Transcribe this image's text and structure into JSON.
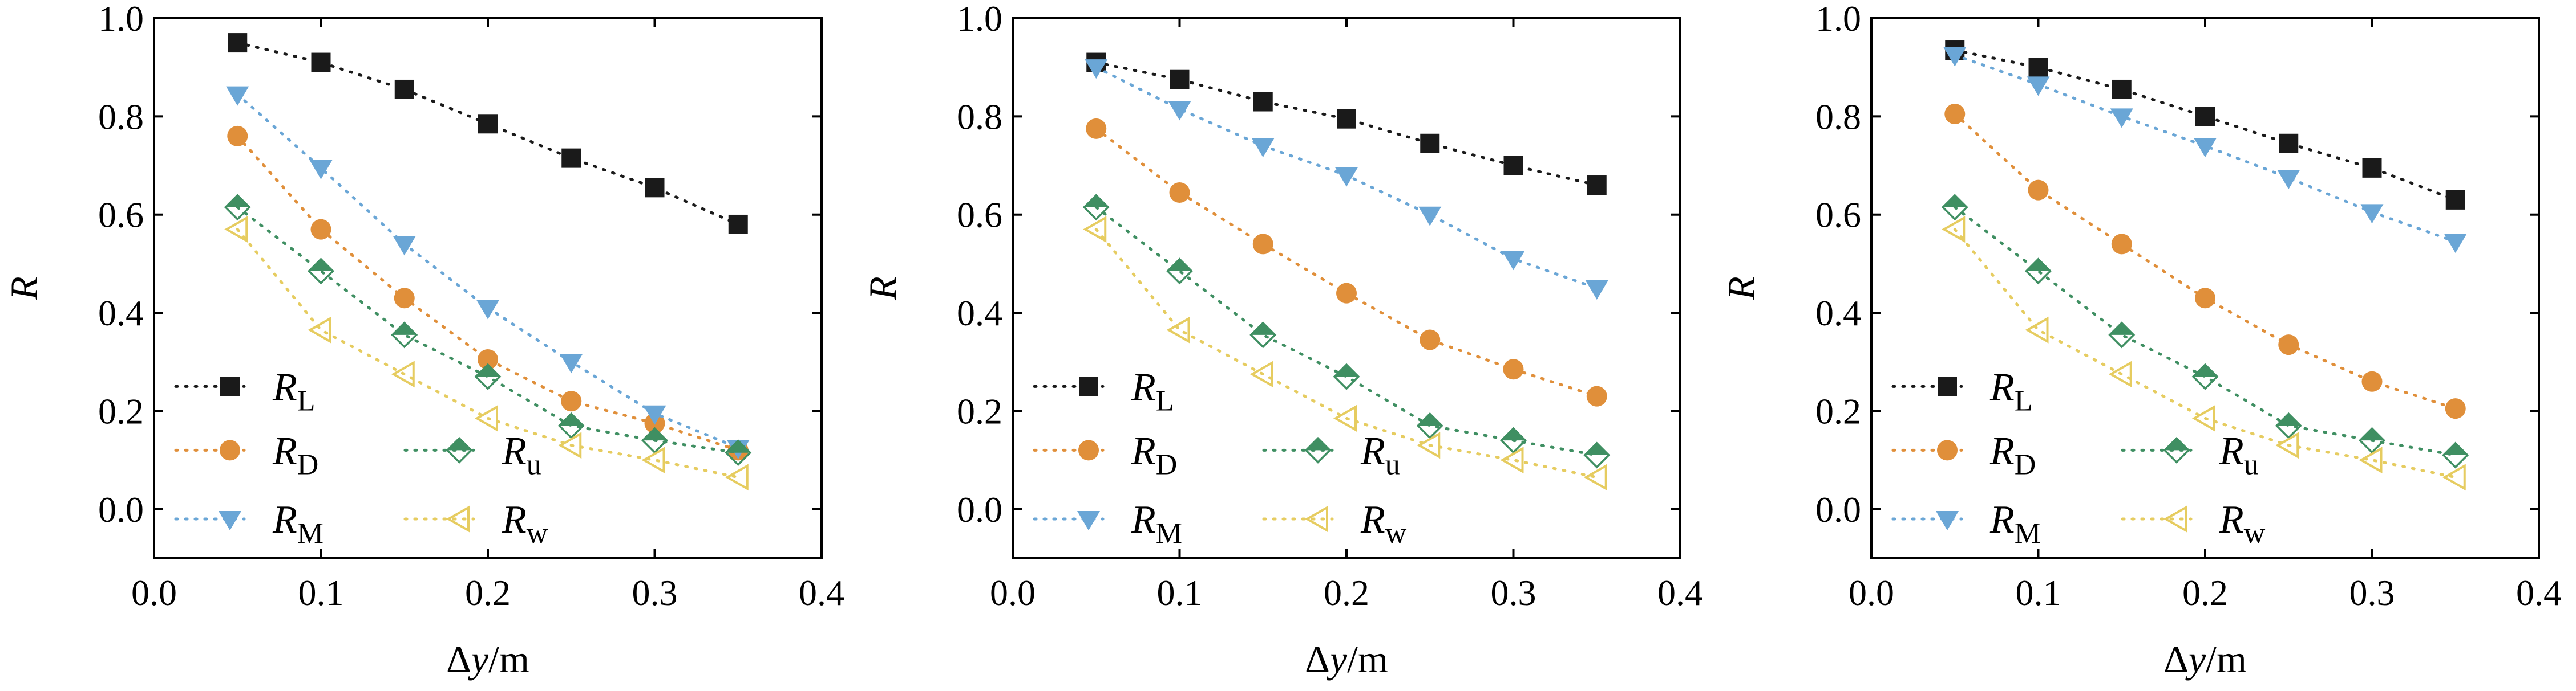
{
  "chart_data": [
    {
      "type": "scatter",
      "xlabel_parts": [
        "Δ",
        "y",
        "/m"
      ],
      "ylabel": "R",
      "xlim": [
        0.0,
        0.4
      ],
      "ylim": [
        -0.1,
        1.0
      ],
      "xticks": [
        "0.0",
        "0.1",
        "0.2",
        "0.3",
        "0.4"
      ],
      "yticks": [
        "0.0",
        "0.2",
        "0.4",
        "0.6",
        "0.8",
        "1.0"
      ],
      "grid": false,
      "legend_position": "bottom-left",
      "series": [
        {
          "key": "L",
          "base": "R",
          "sub": "L",
          "color": "#1a1a1a",
          "marker": "square",
          "x": [
            0.05,
            0.1,
            0.15,
            0.2,
            0.25,
            0.3,
            0.35
          ],
          "y": [
            0.95,
            0.91,
            0.855,
            0.785,
            0.715,
            0.655,
            0.58
          ]
        },
        {
          "key": "D",
          "base": "R",
          "sub": "D",
          "color": "#e08f3a",
          "marker": "circle",
          "x": [
            0.05,
            0.1,
            0.15,
            0.2,
            0.25,
            0.3,
            0.35
          ],
          "y": [
            0.76,
            0.57,
            0.43,
            0.305,
            0.22,
            0.175,
            0.12
          ]
        },
        {
          "key": "M",
          "base": "R",
          "sub": "M",
          "color": "#6aa6d6",
          "marker": "triangle-down",
          "x": [
            0.05,
            0.1,
            0.15,
            0.2,
            0.25,
            0.3,
            0.35
          ],
          "y": [
            0.845,
            0.695,
            0.54,
            0.41,
            0.3,
            0.195,
            0.125
          ]
        },
        {
          "key": "u",
          "base": "R",
          "sub": "u",
          "color": "#3f8f62",
          "marker": "diamond-half",
          "x": [
            0.05,
            0.1,
            0.15,
            0.2,
            0.25,
            0.3,
            0.35
          ],
          "y": [
            0.615,
            0.485,
            0.355,
            0.27,
            0.17,
            0.14,
            0.115
          ]
        },
        {
          "key": "w",
          "base": "R",
          "sub": "w",
          "color": "#e6cc60",
          "marker": "triangle-left",
          "x": [
            0.05,
            0.1,
            0.15,
            0.2,
            0.25,
            0.3,
            0.35
          ],
          "y": [
            0.57,
            0.365,
            0.275,
            0.185,
            0.13,
            0.1,
            0.065
          ]
        }
      ]
    },
    {
      "type": "scatter",
      "xlabel_parts": [
        "Δ",
        "y",
        "/m"
      ],
      "ylabel": "R",
      "xlim": [
        0.0,
        0.4
      ],
      "ylim": [
        -0.1,
        1.0
      ],
      "xticks": [
        "0.0",
        "0.1",
        "0.2",
        "0.3",
        "0.4"
      ],
      "yticks": [
        "0.0",
        "0.2",
        "0.4",
        "0.6",
        "0.8",
        "1.0"
      ],
      "grid": false,
      "legend_position": "bottom-left",
      "series": [
        {
          "key": "L",
          "base": "R",
          "sub": "L",
          "color": "#1a1a1a",
          "marker": "square",
          "x": [
            0.05,
            0.1,
            0.15,
            0.2,
            0.25,
            0.3,
            0.35
          ],
          "y": [
            0.91,
            0.875,
            0.83,
            0.795,
            0.745,
            0.7,
            0.66
          ]
        },
        {
          "key": "D",
          "base": "R",
          "sub": "D",
          "color": "#e08f3a",
          "marker": "circle",
          "x": [
            0.05,
            0.1,
            0.15,
            0.2,
            0.25,
            0.3,
            0.35
          ],
          "y": [
            0.775,
            0.645,
            0.54,
            0.44,
            0.345,
            0.285,
            0.23
          ]
        },
        {
          "key": "M",
          "base": "R",
          "sub": "M",
          "color": "#6aa6d6",
          "marker": "triangle-down",
          "x": [
            0.05,
            0.1,
            0.15,
            0.2,
            0.25,
            0.3,
            0.35
          ],
          "y": [
            0.9,
            0.815,
            0.74,
            0.68,
            0.6,
            0.51,
            0.45
          ]
        },
        {
          "key": "u",
          "base": "R",
          "sub": "u",
          "color": "#3f8f62",
          "marker": "diamond-half",
          "x": [
            0.05,
            0.1,
            0.15,
            0.2,
            0.25,
            0.3,
            0.35
          ],
          "y": [
            0.615,
            0.485,
            0.355,
            0.27,
            0.17,
            0.14,
            0.11
          ]
        },
        {
          "key": "w",
          "base": "R",
          "sub": "w",
          "color": "#e6cc60",
          "marker": "triangle-left",
          "x": [
            0.05,
            0.1,
            0.15,
            0.2,
            0.25,
            0.3,
            0.35
          ],
          "y": [
            0.57,
            0.365,
            0.275,
            0.185,
            0.13,
            0.1,
            0.065
          ]
        }
      ]
    },
    {
      "type": "scatter",
      "xlabel_parts": [
        "Δ",
        "y",
        "/m"
      ],
      "ylabel": "R",
      "xlim": [
        0.0,
        0.4
      ],
      "ylim": [
        -0.1,
        1.0
      ],
      "xticks": [
        "0.0",
        "0.1",
        "0.2",
        "0.3",
        "0.4"
      ],
      "yticks": [
        "0.0",
        "0.2",
        "0.4",
        "0.6",
        "0.8",
        "1.0"
      ],
      "grid": false,
      "legend_position": "bottom-left",
      "series": [
        {
          "key": "L",
          "base": "R",
          "sub": "L",
          "color": "#1a1a1a",
          "marker": "square",
          "x": [
            0.05,
            0.1,
            0.15,
            0.2,
            0.25,
            0.3,
            0.35
          ],
          "y": [
            0.935,
            0.9,
            0.855,
            0.8,
            0.745,
            0.695,
            0.63
          ]
        },
        {
          "key": "D",
          "base": "R",
          "sub": "D",
          "color": "#e08f3a",
          "marker": "circle",
          "x": [
            0.05,
            0.1,
            0.15,
            0.2,
            0.25,
            0.3,
            0.35
          ],
          "y": [
            0.805,
            0.65,
            0.54,
            0.43,
            0.335,
            0.26,
            0.205
          ]
        },
        {
          "key": "M",
          "base": "R",
          "sub": "M",
          "color": "#6aa6d6",
          "marker": "triangle-down",
          "x": [
            0.05,
            0.1,
            0.15,
            0.2,
            0.25,
            0.3,
            0.35
          ],
          "y": [
            0.925,
            0.865,
            0.8,
            0.74,
            0.675,
            0.605,
            0.545
          ]
        },
        {
          "key": "u",
          "base": "R",
          "sub": "u",
          "color": "#3f8f62",
          "marker": "diamond-half",
          "x": [
            0.05,
            0.1,
            0.15,
            0.2,
            0.25,
            0.3,
            0.35
          ],
          "y": [
            0.615,
            0.485,
            0.355,
            0.27,
            0.17,
            0.14,
            0.11
          ]
        },
        {
          "key": "w",
          "base": "R",
          "sub": "w",
          "color": "#e6cc60",
          "marker": "triangle-left",
          "x": [
            0.05,
            0.1,
            0.15,
            0.2,
            0.25,
            0.3,
            0.35
          ],
          "y": [
            0.57,
            0.365,
            0.275,
            0.185,
            0.13,
            0.1,
            0.065
          ]
        }
      ]
    }
  ]
}
